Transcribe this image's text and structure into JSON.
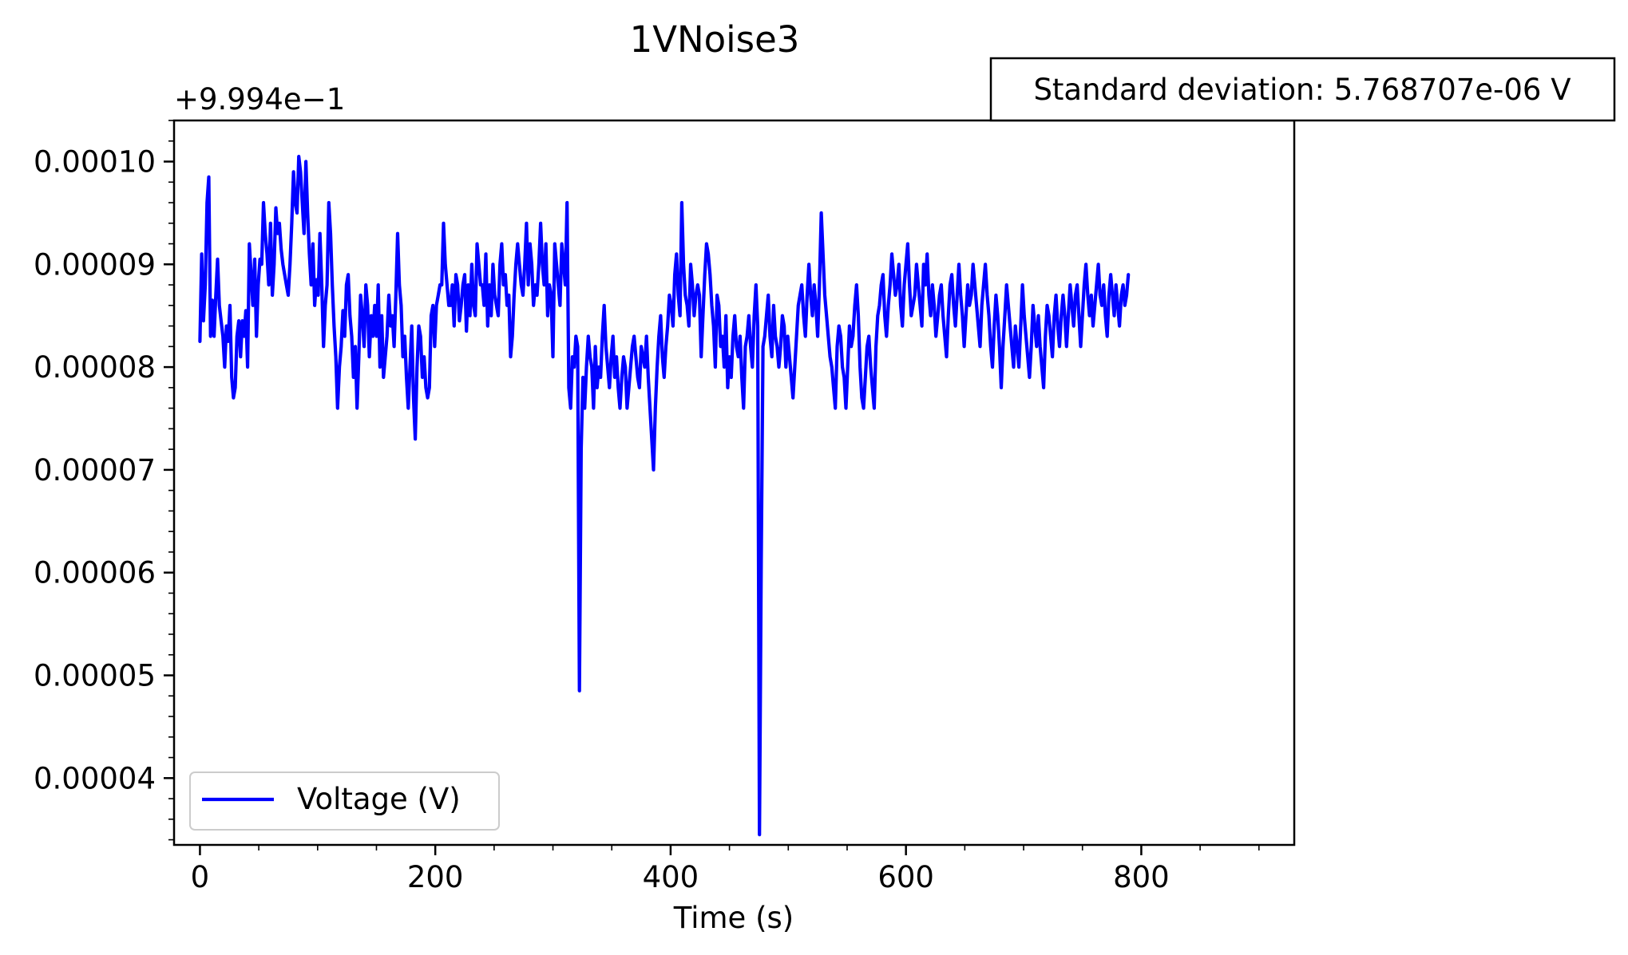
{
  "chart_data": {
    "type": "line",
    "title": "1VNoise3",
    "xlabel": "Time (s)",
    "ylabel": "",
    "y_offset_label": "+9.994e−1",
    "y_offset": 0.9994,
    "xlim": [
      -22,
      930
    ],
    "ylim": [
      3.35e-05,
      0.000104
    ],
    "x_ticks": [
      0,
      200,
      400,
      600,
      800
    ],
    "x_tick_labels": [
      "0",
      "200",
      "400",
      "600",
      "800"
    ],
    "y_ticks": [
      4e-05,
      5e-05,
      6e-05,
      7e-05,
      8e-05,
      9e-05,
      0.0001
    ],
    "y_tick_labels": [
      "0.00004",
      "0.00005",
      "0.00006",
      "0.00007",
      "0.00008",
      "0.00009",
      "0.00010"
    ],
    "grid": false,
    "legend_position": "lower left",
    "annotation": "Standard deviation: 5.768707e-06 V",
    "color": "#0000ff",
    "series": [
      {
        "name": "Voltage (V)",
        "x_start": 0,
        "x_step": 1.5,
        "values": [
          8.25e-05,
          9.1e-05,
          8.45e-05,
          8.8e-05,
          9.6e-05,
          9.85e-05,
          8.3e-05,
          8.65e-05,
          8.3e-05,
          8.7e-05,
          9.05e-05,
          8.6e-05,
          8.45e-05,
          8.3e-05,
          8e-05,
          8.4e-05,
          8.25e-05,
          8.6e-05,
          7.9e-05,
          7.7e-05,
          7.8e-05,
          8.3e-05,
          8.45e-05,
          8.1e-05,
          8.45e-05,
          8.3e-05,
          8.55e-05,
          8e-05,
          9.2e-05,
          8.9e-05,
          8.6e-05,
          9.05e-05,
          8.3e-05,
          8.8e-05,
          9.05e-05,
          9e-05,
          9.6e-05,
          9.3e-05,
          9.1e-05,
          8.8e-05,
          9.4e-05,
          8.7e-05,
          9e-05,
          9.55e-05,
          9.3e-05,
          9.4e-05,
          9.15e-05,
          9e-05,
          8.9e-05,
          8.8e-05,
          8.7e-05,
          9e-05,
          9.4e-05,
          9.9e-05,
          9.6e-05,
          9.5e-05,
          0.0001005,
          9.9e-05,
          9.6e-05,
          9.3e-05,
          0.0001,
          9.5e-05,
          9.1e-05,
          8.8e-05,
          9.2e-05,
          8.6e-05,
          8.85e-05,
          8.7e-05,
          9.3e-05,
          8.8e-05,
          8.2e-05,
          8.6e-05,
          8.8e-05,
          9.6e-05,
          9.3e-05,
          8.8e-05,
          8.4e-05,
          8.1e-05,
          7.6e-05,
          8e-05,
          8.2e-05,
          8.55e-05,
          8.3e-05,
          8.8e-05,
          8.9e-05,
          8.5e-05,
          8.3e-05,
          7.9e-05,
          8.2e-05,
          7.6e-05,
          8.1e-05,
          8.7e-05,
          8.5e-05,
          8.2e-05,
          8.8e-05,
          8.6e-05,
          8.1e-05,
          8.5e-05,
          8.3e-05,
          8.6e-05,
          8.3e-05,
          8.8e-05,
          8e-05,
          8.5e-05,
          7.9e-05,
          8.1e-05,
          8.3e-05,
          8.7e-05,
          8.4e-05,
          8.5e-05,
          8.2e-05,
          8.7e-05,
          9.3e-05,
          8.8e-05,
          8.6e-05,
          8.1e-05,
          8.3e-05,
          7.9e-05,
          7.6e-05,
          8e-05,
          8.4e-05,
          7.7e-05,
          7.3e-05,
          8e-05,
          8.4e-05,
          8.3e-05,
          7.9e-05,
          8.1e-05,
          7.8e-05,
          7.7e-05,
          7.8e-05,
          8.5e-05,
          8.6e-05,
          8.2e-05,
          8.6e-05,
          8.7e-05,
          8.8e-05,
          8.8e-05,
          9.4e-05,
          9e-05,
          8.8e-05,
          8.6e-05,
          8.6e-05,
          8.8e-05,
          8.4e-05,
          8.9e-05,
          8.8e-05,
          8.45e-05,
          8.6e-05,
          8.8e-05,
          8.9e-05,
          8.35e-05,
          8.8e-05,
          8.5e-05,
          9e-05,
          8.6e-05,
          8.5e-05,
          9.2e-05,
          9e-05,
          8.8e-05,
          8.8e-05,
          8.6e-05,
          9.1e-05,
          8.4e-05,
          8.8e-05,
          8.5e-05,
          9e-05,
          8.7e-05,
          8.6e-05,
          8.5e-05,
          9e-05,
          9.2e-05,
          8.8e-05,
          8.9e-05,
          8.6e-05,
          8.7e-05,
          8.1e-05,
          8.3e-05,
          8.7e-05,
          9e-05,
          9.2e-05,
          9e-05,
          8.8e-05,
          8.7e-05,
          9e-05,
          9.4e-05,
          8.8e-05,
          9.2e-05,
          9e-05,
          8.6e-05,
          8.8e-05,
          8.7e-05,
          9e-05,
          9.4e-05,
          9e-05,
          8.8e-05,
          9.2e-05,
          8.5e-05,
          8.8e-05,
          8.7e-05,
          8.1e-05,
          9.2e-05,
          9e-05,
          8.8e-05,
          8.6e-05,
          9.2e-05,
          9e-05,
          8.8e-05,
          9.6e-05,
          7.8e-05,
          7.6e-05,
          8.1e-05,
          8e-05,
          8.3e-05,
          8.2e-05,
          4.85e-05,
          7.2e-05,
          7.9e-05,
          7.6e-05,
          8e-05,
          8.3e-05,
          8.1e-05,
          8e-05,
          7.6e-05,
          8.2e-05,
          7.8e-05,
          8e-05,
          7.9e-05,
          8.3e-05,
          8.6e-05,
          8.2e-05,
          8e-05,
          7.8e-05,
          8.1e-05,
          8.3e-05,
          7.9e-05,
          8.1e-05,
          7.8e-05,
          7.6e-05,
          7.9e-05,
          8.1e-05,
          8e-05,
          7.6e-05,
          7.8e-05,
          8e-05,
          8.2e-05,
          8.3e-05,
          8.1e-05,
          7.9e-05,
          7.8e-05,
          8.2e-05,
          8.1e-05,
          8e-05,
          8.3e-05,
          7.9e-05,
          7.6e-05,
          7.3e-05,
          7e-05,
          7.6e-05,
          8e-05,
          8.3e-05,
          8.5e-05,
          8.1e-05,
          7.9e-05,
          8.2e-05,
          8.4e-05,
          8.7e-05,
          8.6e-05,
          8.4e-05,
          8.9e-05,
          9.1e-05,
          8.7e-05,
          8.5e-05,
          9.6e-05,
          9e-05,
          8.7e-05,
          8.6e-05,
          8.4e-05,
          9e-05,
          8.8e-05,
          8.5e-05,
          8.7e-05,
          8.8e-05,
          8.7e-05,
          8.1e-05,
          8.5e-05,
          8.9e-05,
          9.2e-05,
          9.1e-05,
          8.9e-05,
          8.6e-05,
          8.4e-05,
          8e-05,
          8.7e-05,
          8.6e-05,
          8.2e-05,
          8.3e-05,
          8e-05,
          8.5e-05,
          7.8e-05,
          8.1e-05,
          7.9e-05,
          8.3e-05,
          8.5e-05,
          8.2e-05,
          8.1e-05,
          8.3e-05,
          7.9e-05,
          7.6e-05,
          8.2e-05,
          8.3e-05,
          8.5e-05,
          8.2e-05,
          8e-05,
          8.5e-05,
          8.8e-05,
          8.4e-05,
          3.45e-05,
          6.1e-05,
          8.2e-05,
          8.3e-05,
          8.5e-05,
          8.7e-05,
          8.3e-05,
          8.1e-05,
          8.6e-05,
          8.3e-05,
          8.2e-05,
          8e-05,
          8.2e-05,
          8.5e-05,
          8.4e-05,
          8e-05,
          8.3e-05,
          8.1e-05,
          7.9e-05,
          7.7e-05,
          8e-05,
          8.3e-05,
          8.6e-05,
          8.7e-05,
          8.8e-05,
          8.5e-05,
          8.3e-05,
          8.7e-05,
          9e-05,
          8.7e-05,
          8.5e-05,
          8.8e-05,
          8.6e-05,
          8.3e-05,
          8.8e-05,
          9.5e-05,
          9.1e-05,
          8.7e-05,
          8.5e-05,
          8.3e-05,
          8.1e-05,
          8e-05,
          7.8e-05,
          7.6e-05,
          8.2e-05,
          8.4e-05,
          8.3e-05,
          8e-05,
          7.9e-05,
          7.6e-05,
          8e-05,
          8.4e-05,
          8.2e-05,
          8.3e-05,
          8.6e-05,
          8.8e-05,
          8.5e-05,
          8e-05,
          7.7e-05,
          7.6e-05,
          7.9e-05,
          8.2e-05,
          8.3e-05,
          8e-05,
          7.8e-05,
          7.6e-05,
          8.2e-05,
          8.5e-05,
          8.6e-05,
          8.8e-05,
          8.9e-05,
          8.5e-05,
          8.3e-05,
          8.6e-05,
          8.8e-05,
          9.1e-05,
          8.9e-05,
          8.7e-05,
          8.8e-05,
          9e-05,
          8.6e-05,
          8.4e-05,
          8.8e-05,
          9e-05,
          9.2e-05,
          8.8e-05,
          8.5e-05,
          8.6e-05,
          8.7e-05,
          9e-05,
          8.8e-05,
          8.6e-05,
          8.4e-05,
          9e-05,
          8.8e-05,
          9.1e-05,
          8.7e-05,
          8.5e-05,
          8.8e-05,
          8.6e-05,
          8.3e-05,
          8.5e-05,
          8.7e-05,
          8.8e-05,
          8.5e-05,
          8.3e-05,
          8.1e-05,
          8.5e-05,
          8.8e-05,
          8.9e-05,
          8.6e-05,
          8.4e-05,
          8.7e-05,
          9e-05,
          8.7e-05,
          8.5e-05,
          8.2e-05,
          8.5e-05,
          8.8e-05,
          8.6e-05,
          8.7e-05,
          9e-05,
          8.8e-05,
          8.6e-05,
          8.4e-05,
          8.2e-05,
          8.6e-05,
          8.8e-05,
          9e-05,
          8.7e-05,
          8.5e-05,
          8.2e-05,
          8e-05,
          8.4e-05,
          8.7e-05,
          8.5e-05,
          8.2e-05,
          7.8e-05,
          8.2e-05,
          8.5e-05,
          8.8e-05,
          8.6e-05,
          8.4e-05,
          8.2e-05,
          8e-05,
          8.4e-05,
          8.2e-05,
          8e-05,
          8.4e-05,
          8.8e-05,
          8.5e-05,
          8.3e-05,
          8.1e-05,
          7.9e-05,
          8.2e-05,
          8.6e-05,
          8.4e-05,
          8.2e-05,
          8.5e-05,
          8.2e-05,
          8e-05,
          7.8e-05,
          8.3e-05,
          8.6e-05,
          8.5e-05,
          8.3e-05,
          8.1e-05,
          8.5e-05,
          8.7e-05,
          8.4e-05,
          8.2e-05,
          8.5e-05,
          8.7e-05,
          8.5e-05,
          8.2e-05,
          8.5e-05,
          8.8e-05,
          8.6e-05,
          8.4e-05,
          8.7e-05,
          8.8e-05,
          8.5e-05,
          8.2e-05,
          8.5e-05,
          8.8e-05,
          9e-05,
          8.7e-05,
          8.5e-05,
          8.7e-05,
          8.4e-05,
          8.6e-05,
          8.8e-05,
          9e-05,
          8.7e-05,
          8.6e-05,
          8.8e-05,
          8.5e-05,
          8.3e-05,
          8.7e-05,
          8.9e-05,
          8.7e-05,
          8.5e-05,
          8.8e-05,
          8.6e-05,
          8.4e-05,
          8.7e-05,
          8.8e-05,
          8.6e-05,
          8.7e-05,
          8.9e-05
        ]
      }
    ]
  }
}
